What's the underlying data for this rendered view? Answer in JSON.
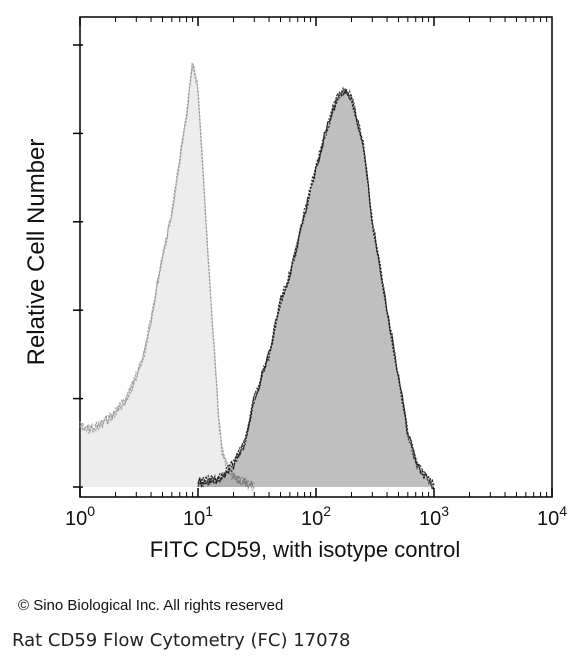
{
  "chart_data": {
    "type": "area",
    "xscale": "log",
    "xlim": [
      1,
      10000
    ],
    "xticks": [
      {
        "base": "10",
        "exp": "0"
      },
      {
        "base": "10",
        "exp": "1"
      },
      {
        "base": "10",
        "exp": "2"
      },
      {
        "base": "10",
        "exp": "3"
      },
      {
        "base": "10",
        "exp": "4"
      }
    ],
    "xlabel": "FITC CD59, with isotype control",
    "ylabel": "Relative Cell Number",
    "ylim": [
      0,
      100
    ],
    "grid": false,
    "series": [
      {
        "role": "isotype control",
        "color": "#9a9a9a",
        "x": [
          1,
          1.2,
          1.5,
          2,
          2.5,
          3,
          3.5,
          4,
          5,
          6,
          7,
          8,
          9,
          10,
          11,
          12,
          13,
          14,
          15,
          16,
          18,
          20,
          25,
          30
        ],
        "y": [
          14,
          13,
          14,
          17,
          20,
          25,
          30,
          38,
          52,
          62,
          74,
          84,
          96,
          90,
          72,
          55,
          40,
          28,
          15,
          8,
          4,
          2,
          1,
          0
        ]
      },
      {
        "role": "FITC CD59",
        "color": "#1a1a1a",
        "x": [
          10,
          15,
          20,
          25,
          30,
          40,
          50,
          60,
          70,
          80,
          100,
          120,
          150,
          180,
          200,
          250,
          300,
          400,
          500,
          600,
          700,
          800,
          1000
        ],
        "y": [
          1,
          2,
          5,
          10,
          20,
          30,
          42,
          48,
          55,
          62,
          72,
          80,
          88,
          90,
          88,
          78,
          60,
          40,
          25,
          12,
          6,
          3,
          0
        ]
      }
    ]
  },
  "footer": {
    "copyright": "© Sino Biological Inc. All rights reserved",
    "caption": "Rat CD59 Flow Cytometry (FC) 17078"
  }
}
